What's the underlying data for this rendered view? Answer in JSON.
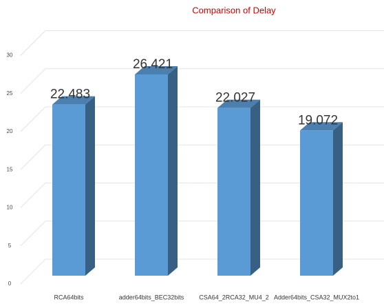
{
  "chart_data": {
    "type": "bar3d",
    "title": "Comparison of Delay",
    "categories": [
      "RCA64bits",
      "adder64bits_BEC32bits",
      "CSA64_2RCA32_MU4_2",
      "Adder64bits_CSA32_MUX2to1"
    ],
    "values": [
      22.483,
      26.421,
      22.027,
      19.072
    ],
    "color": "#5b9bd5",
    "ylim": [
      0,
      30
    ],
    "yticks": [
      0,
      5,
      10,
      15,
      20,
      25,
      30
    ],
    "grid": true
  }
}
